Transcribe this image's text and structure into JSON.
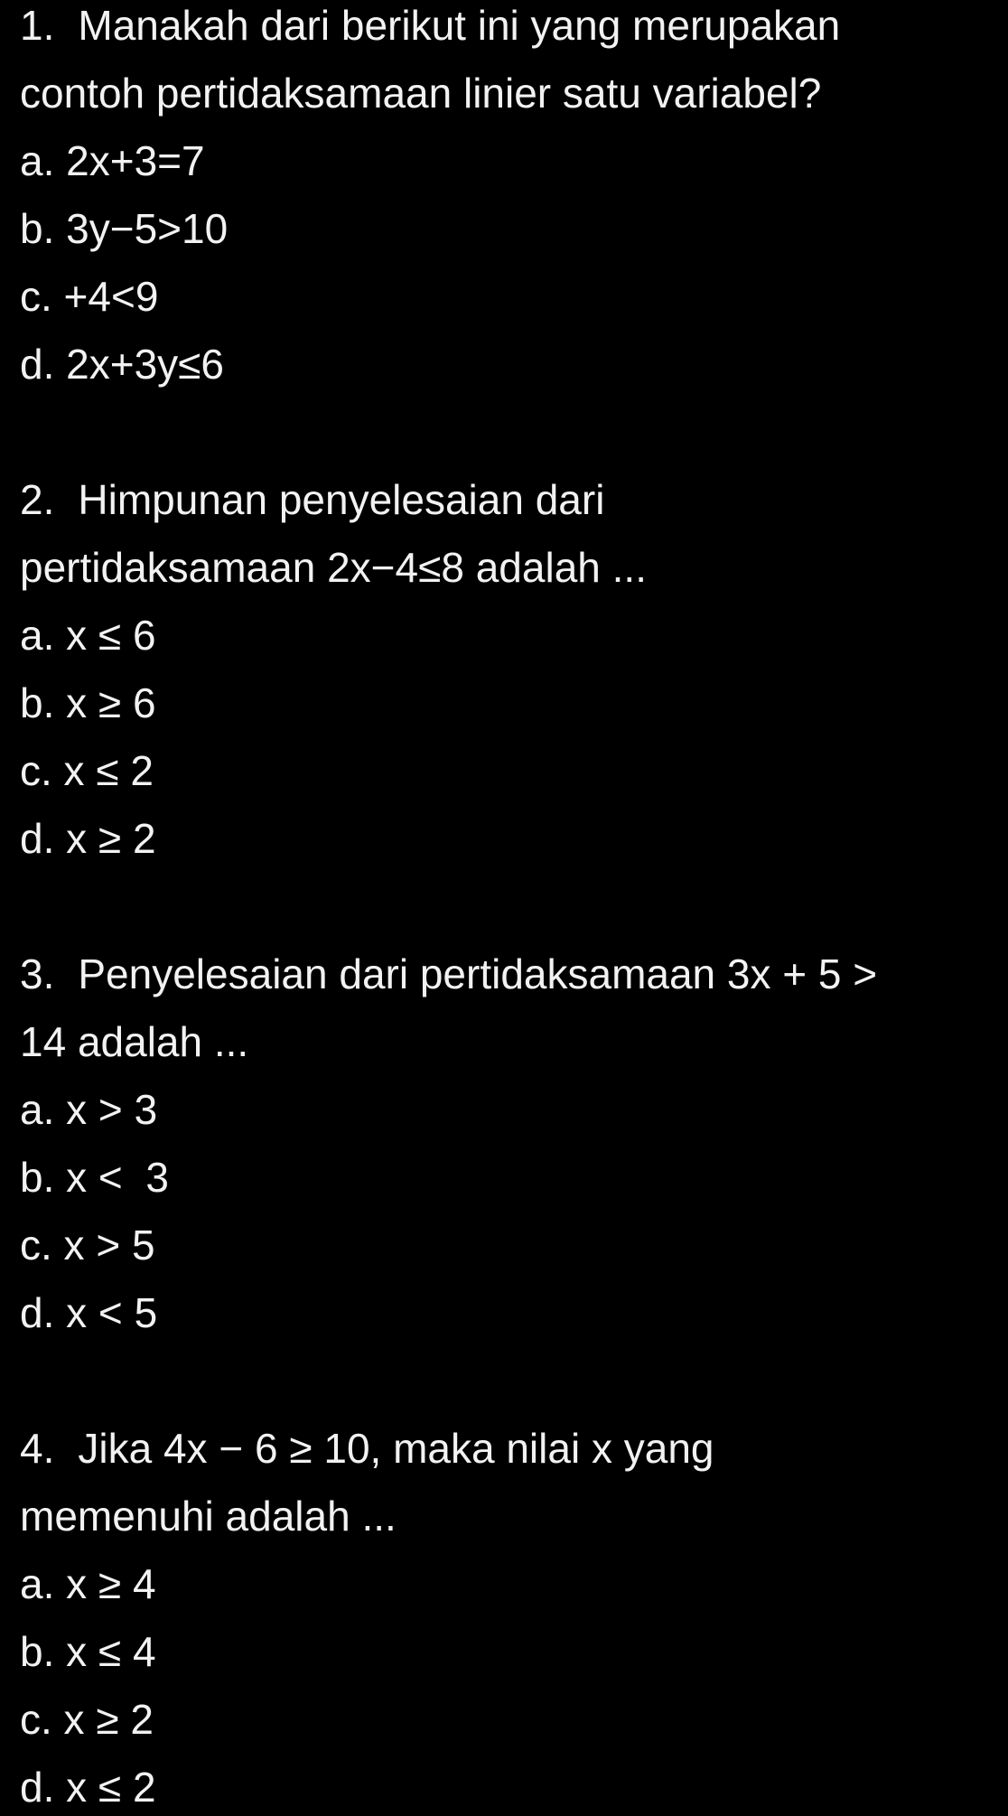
{
  "questions": [
    {
      "number": "1.",
      "lines": [
        "Manakah dari berikut ini yang merupakan",
        "contoh pertidaksamaan linier satu variabel?"
      ],
      "options": [
        "a. 2x+3=7",
        "b. 3y−5>10",
        "c. +4<9",
        "d. 2x+3y≤6"
      ]
    },
    {
      "number": "2.",
      "lines": [
        "Himpunan penyelesaian dari",
        "pertidaksamaan 2x−4≤8 adalah ..."
      ],
      "options": [
        "a. x ≤ 6",
        "b. x ≥ 6",
        "c. x ≤ 2",
        "d. x ≥ 2"
      ]
    },
    {
      "number": "3.",
      "lines": [
        "Penyelesaian dari pertidaksamaan 3x + 5 >",
        "14 adalah ..."
      ],
      "options": [
        "a. x > 3",
        "b. x <  3",
        "c. x > 5",
        "d. x < 5"
      ]
    },
    {
      "number": "4.",
      "lines": [
        "Jika 4x − 6 ≥ 10, maka nilai x yang",
        "memenuhi adalah ..."
      ],
      "options": [
        "a. x ≥ 4",
        "b. x ≤ 4",
        "c. x ≥ 2",
        "d. x ≤ 2"
      ]
    }
  ]
}
